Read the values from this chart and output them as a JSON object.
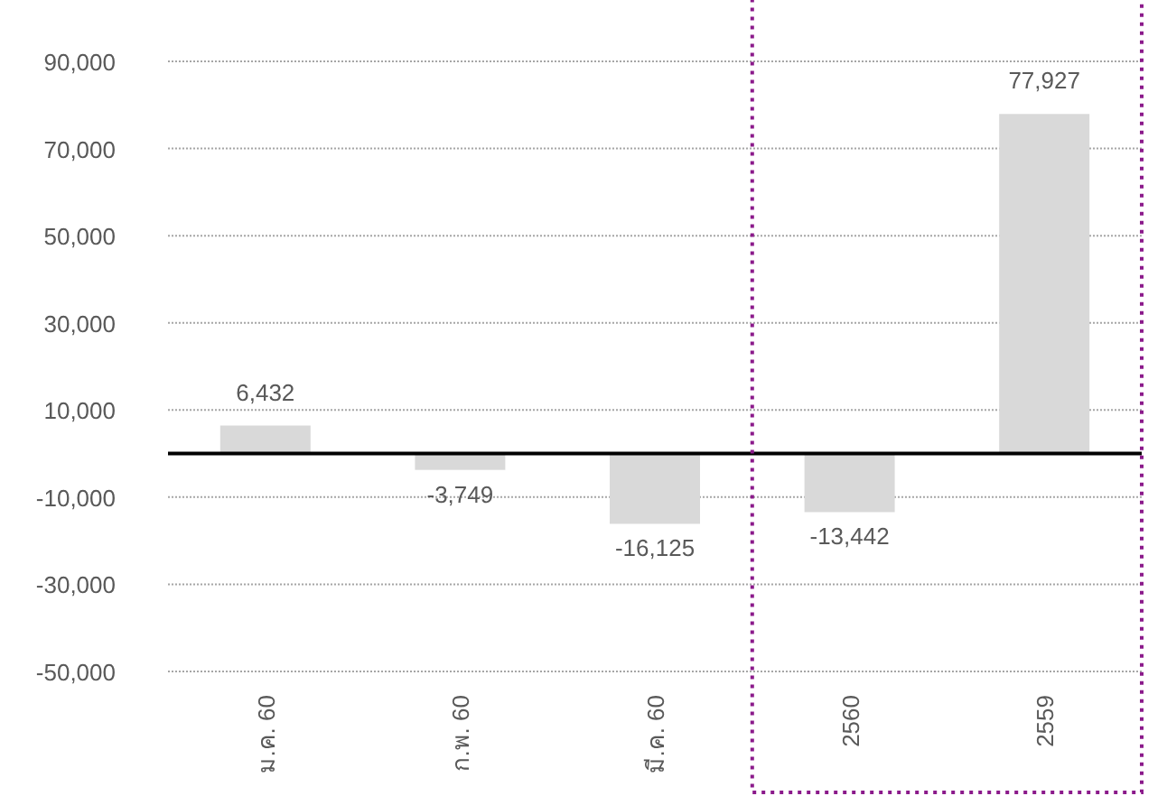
{
  "chart_data": {
    "type": "bar",
    "categories": [
      "ม.ค. 60",
      "ก.พ. 60",
      "มี.ค. 60",
      "2560",
      "2559"
    ],
    "values": [
      6432,
      -3749,
      -16125,
      -13442,
      77927
    ],
    "color": "#d9d9d9",
    "ylim": [
      -50000,
      90000
    ],
    "yticks": [
      {
        "value": -50000,
        "label": "-50,000"
      },
      {
        "value": -30000,
        "label": "-30,000"
      },
      {
        "value": -10000,
        "label": "-10,000"
      },
      {
        "value": 10000,
        "label": "10,000"
      },
      {
        "value": 30000,
        "label": "30,000"
      },
      {
        "value": 50000,
        "label": "50,000"
      },
      {
        "value": 70000,
        "label": "70,000"
      },
      {
        "value": 90000,
        "label": "90,000"
      }
    ],
    "grid": "y",
    "value_labels": [
      "6,432",
      "-3,749",
      "-16,125",
      "-13,442",
      "77,927"
    ]
  }
}
